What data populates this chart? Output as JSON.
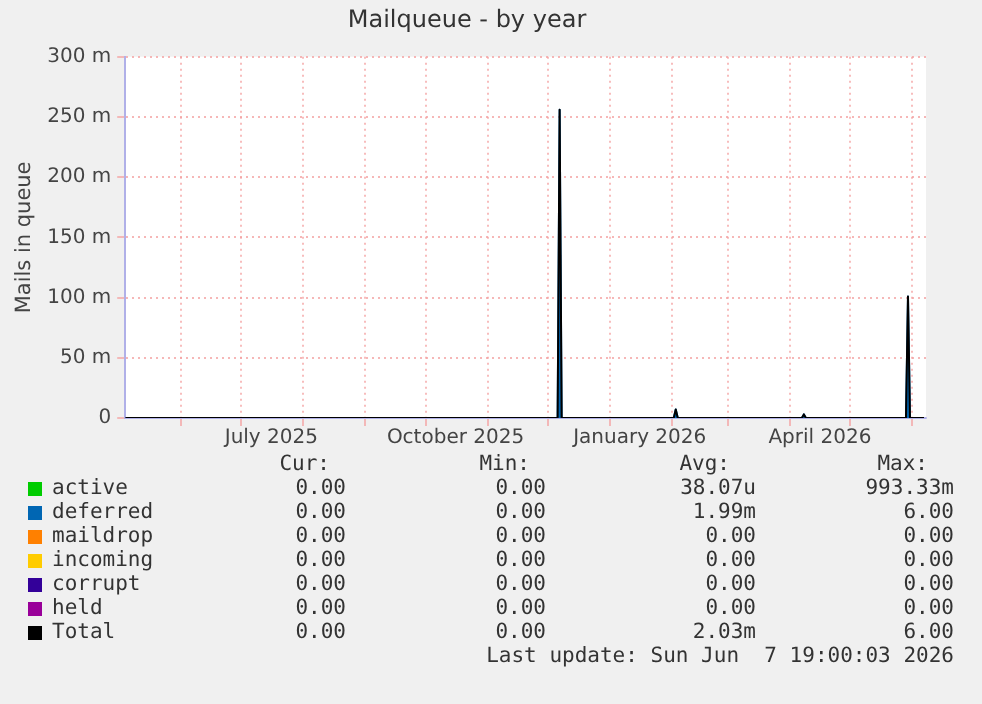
{
  "chart_data": {
    "type": "line",
    "title": "Mailqueue - by year",
    "ylabel": "Mails in queue",
    "x": [
      "2025-05-04",
      "2025-12-06",
      "2025-12-07",
      "2025-12-08",
      "2026-02-02",
      "2026-02-03",
      "2026-02-04",
      "2026-04-07",
      "2026-04-08",
      "2026-04-09",
      "2026-05-29",
      "2026-05-30",
      "2026-05-31",
      "2026-06-07"
    ],
    "series": [
      {
        "name": "active",
        "color": "#00cc00",
        "values": [
          null,
          null,
          null,
          null,
          null,
          null,
          null,
          null,
          null,
          null,
          null,
          null,
          null,
          null
        ]
      },
      {
        "name": "deferred",
        "type": "area",
        "color": "#0066b3",
        "values": [
          null,
          0,
          256,
          0,
          0,
          7,
          0,
          0,
          3,
          0,
          0,
          101,
          0,
          null
        ]
      },
      {
        "name": "maildrop",
        "color": "#ff8000",
        "values": [
          null,
          null,
          null,
          null,
          null,
          null,
          null,
          null,
          null,
          null,
          null,
          null,
          null,
          null
        ]
      },
      {
        "name": "incoming",
        "color": "#ffcc00",
        "values": [
          null,
          null,
          null,
          null,
          null,
          null,
          null,
          null,
          null,
          null,
          null,
          null,
          null,
          null
        ]
      },
      {
        "name": "corrupt",
        "color": "#330099",
        "values": [
          null,
          null,
          null,
          null,
          null,
          null,
          null,
          null,
          null,
          null,
          null,
          null,
          null,
          null
        ]
      },
      {
        "name": "held",
        "color": "#990099",
        "values": [
          null,
          null,
          null,
          null,
          null,
          null,
          null,
          null,
          null,
          null,
          null,
          null,
          null,
          null
        ]
      },
      {
        "name": "Total",
        "color": "#000000",
        "values": [
          0,
          0,
          256,
          0,
          0,
          7,
          0,
          0,
          3,
          0,
          0,
          101,
          0,
          0
        ]
      }
    ],
    "xlim": [
      "2025-05-04",
      "2026-06-08"
    ],
    "xticks": [
      {
        "value": "2025-06-01",
        "label": null
      },
      {
        "value": "2025-07-01",
        "label": null
      },
      {
        "value": "2025-07-16",
        "label": "July 2025"
      },
      {
        "value": "2025-08-01",
        "label": null
      },
      {
        "value": "2025-09-01",
        "label": null
      },
      {
        "value": "2025-10-01",
        "label": null
      },
      {
        "value": "2025-10-16",
        "label": "October 2025"
      },
      {
        "value": "2025-11-01",
        "label": null
      },
      {
        "value": "2025-12-01",
        "label": null
      },
      {
        "value": "2026-01-01",
        "label": null
      },
      {
        "value": "2026-01-16",
        "label": "January 2026"
      },
      {
        "value": "2026-02-01",
        "label": null
      },
      {
        "value": "2026-03-01",
        "label": null
      },
      {
        "value": "2026-04-01",
        "label": null
      },
      {
        "value": "2026-04-16",
        "label": "April 2026"
      },
      {
        "value": "2026-05-01",
        "label": null
      },
      {
        "value": "2026-06-01",
        "label": null
      }
    ],
    "ylim": [
      0,
      300
    ],
    "yticks": [
      0,
      {
        "value": 50,
        "label": "50 m"
      },
      {
        "value": 100,
        "label": "100 m"
      },
      {
        "value": 150,
        "label": "150 m"
      },
      {
        "value": 200,
        "label": "200 m"
      },
      {
        "value": 250,
        "label": "250 m"
      },
      {
        "value": 300,
        "label": "300 m"
      }
    ],
    "grid": true,
    "legend": "bottom",
    "marker": "none",
    "line_style": "solid",
    "annotations": [
      "Cur:",
      "Min:",
      "Avg:",
      "Max:",
      "0.00",
      "0.00",
      "38.07u",
      "993.33m",
      "0.00",
      "0.00",
      "1.99m",
      "6.00",
      "0.00",
      "0.00",
      "0.00",
      "0.00",
      "0.00",
      "0.00",
      "0.00",
      "0.00",
      "0.00",
      "0.00",
      "0.00",
      "0.00",
      "0.00",
      "0.00",
      "0.00",
      "0.00",
      "0.00",
      "0.00",
      "2.03m",
      "6.00",
      "Last update: Sun Jun  7 19:00:03 2026"
    ]
  }
}
